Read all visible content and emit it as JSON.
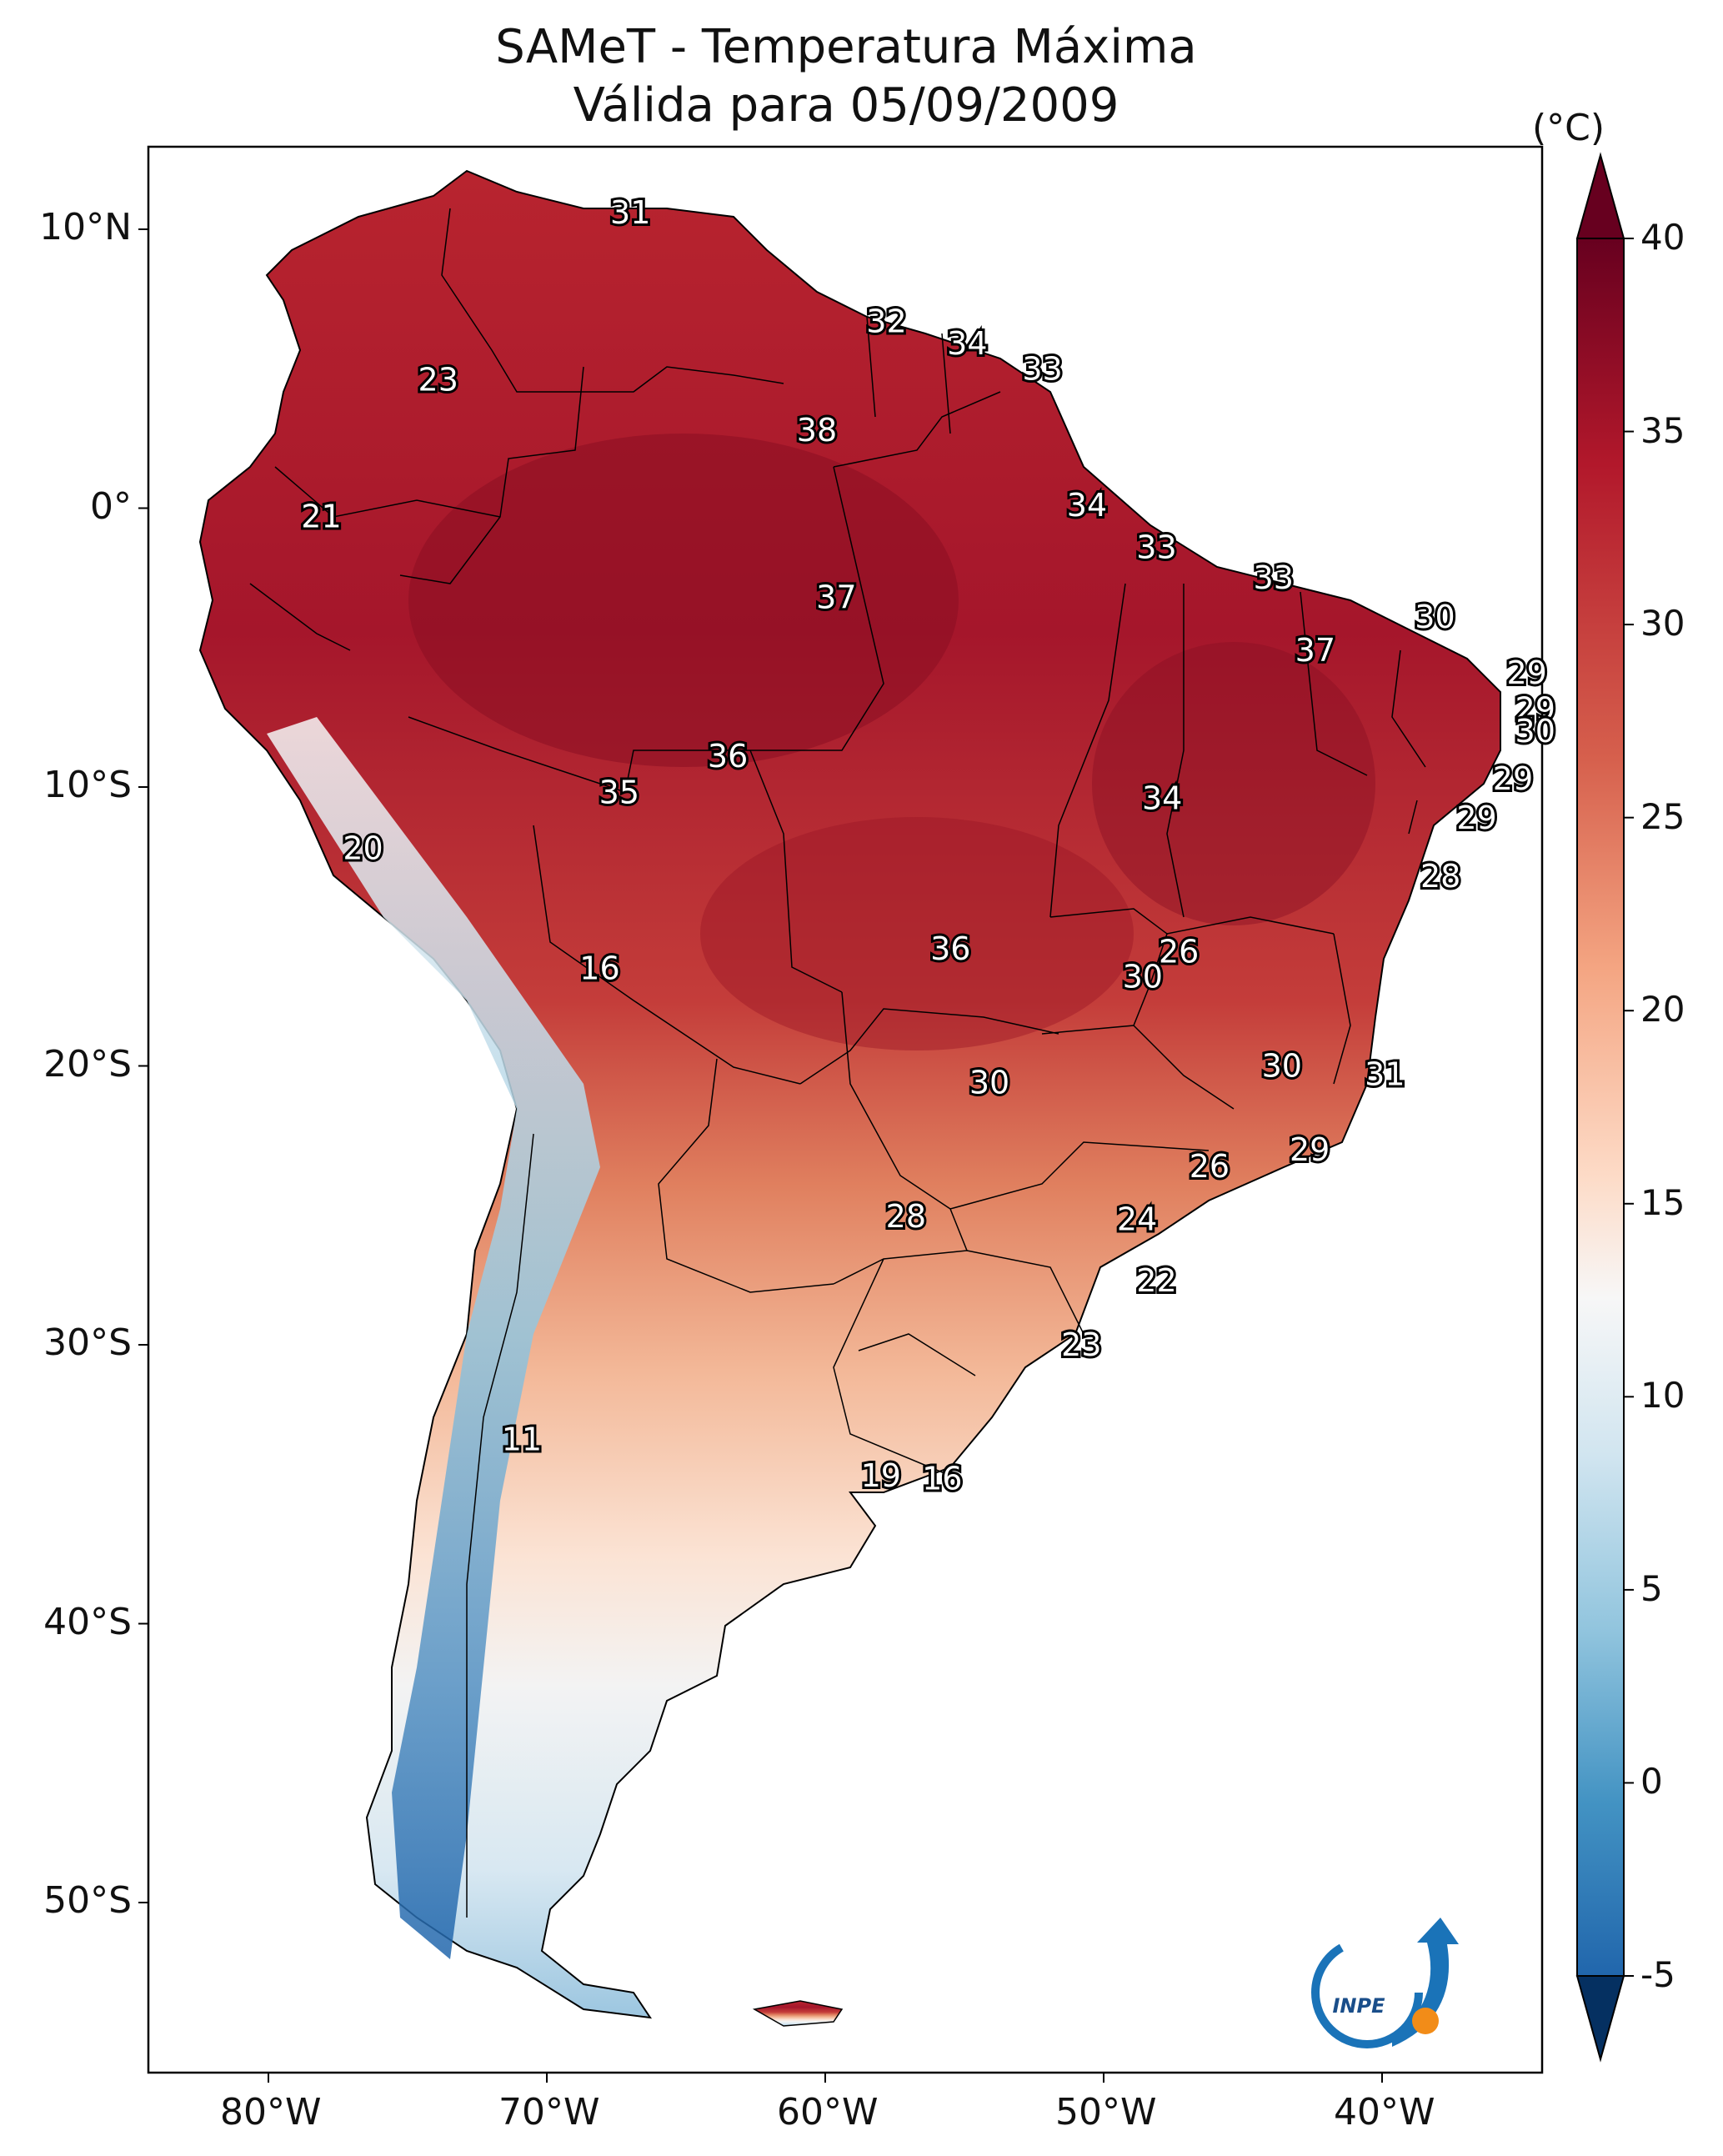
{
  "title": {
    "line1": "SAMeT - Temperatura Máxima",
    "line2": "Válida para 05/09/2009"
  },
  "colorbar": {
    "unit": "(°C)",
    "ticks": [
      "40",
      "35",
      "30",
      "25",
      "20",
      "15",
      "10",
      "5",
      "0",
      "-5"
    ],
    "min": -5,
    "max": 40,
    "colors": {
      "hot": "#67001f",
      "warm": "#b2182b",
      "mild": "#f4a582",
      "neutral": "#f7f7f7",
      "cool": "#92c5de",
      "cold": "#2166ac",
      "coldest": "#053061"
    }
  },
  "axes": {
    "lat_ticks": [
      "10°N",
      "0°",
      "10°S",
      "20°S",
      "30°S",
      "40°S",
      "50°S"
    ],
    "lon_ticks": [
      "80°W",
      "70°W",
      "60°W",
      "50°W",
      "40°W"
    ]
  },
  "logo": {
    "text": "INPE",
    "icon": "inpe-logo-icon"
  },
  "map_values": [
    {
      "text": "31",
      "lon": -67,
      "lat": 10.6
    },
    {
      "text": "23",
      "lon": -73.9,
      "lat": 4.6
    },
    {
      "text": "32",
      "lon": -57.8,
      "lat": 6.7
    },
    {
      "text": "34",
      "lon": -54.9,
      "lat": 5.9
    },
    {
      "text": "33",
      "lon": -52.2,
      "lat": 5.0
    },
    {
      "text": "38",
      "lon": -60.3,
      "lat": 2.8
    },
    {
      "text": "21",
      "lon": -78.1,
      "lat": -0.3
    },
    {
      "text": "34",
      "lon": -50.6,
      "lat": 0.1
    },
    {
      "text": "33",
      "lon": -48.1,
      "lat": -1.4
    },
    {
      "text": "33",
      "lon": -43.9,
      "lat": -2.5
    },
    {
      "text": "37",
      "lon": -59.6,
      "lat": -3.2
    },
    {
      "text": "30",
      "lon": -38.1,
      "lat": -3.9
    },
    {
      "text": "37",
      "lon": -42.4,
      "lat": -5.1
    },
    {
      "text": "29",
      "lon": -34.8,
      "lat": -5.9
    },
    {
      "text": "29",
      "lon": -34.5,
      "lat": -7.2
    },
    {
      "text": "30",
      "lon": -34.5,
      "lat": -8.0
    },
    {
      "text": "36",
      "lon": -63.5,
      "lat": -8.9
    },
    {
      "text": "29",
      "lon": -35.3,
      "lat": -9.7
    },
    {
      "text": "35",
      "lon": -67.4,
      "lat": -10.2
    },
    {
      "text": "34",
      "lon": -47.9,
      "lat": -10.4
    },
    {
      "text": "29",
      "lon": -36.6,
      "lat": -11.1
    },
    {
      "text": "20",
      "lon": -76.6,
      "lat": -12.2
    },
    {
      "text": "28",
      "lon": -37.9,
      "lat": -13.2
    },
    {
      "text": "36",
      "lon": -55.5,
      "lat": -15.8
    },
    {
      "text": "26",
      "lon": -47.3,
      "lat": -15.9
    },
    {
      "text": "16",
      "lon": -68.1,
      "lat": -16.5
    },
    {
      "text": "30",
      "lon": -48.6,
      "lat": -16.8
    },
    {
      "text": "30",
      "lon": -43.6,
      "lat": -20.0
    },
    {
      "text": "31",
      "lon": -39.9,
      "lat": -20.3
    },
    {
      "text": "30",
      "lon": -54.1,
      "lat": -20.6
    },
    {
      "text": "29",
      "lon": -42.6,
      "lat": -23.0
    },
    {
      "text": "26",
      "lon": -46.2,
      "lat": -23.6
    },
    {
      "text": "24",
      "lon": -48.8,
      "lat": -25.5
    },
    {
      "text": "28",
      "lon": -57.1,
      "lat": -25.4
    },
    {
      "text": "22",
      "lon": -48.1,
      "lat": -27.7
    },
    {
      "text": "23",
      "lon": -50.8,
      "lat": -30.0
    },
    {
      "text": "11",
      "lon": -70.9,
      "lat": -33.4
    },
    {
      "text": "19",
      "lon": -58.0,
      "lat": -34.7
    },
    {
      "text": "16",
      "lon": -55.8,
      "lat": -34.8
    }
  ]
}
